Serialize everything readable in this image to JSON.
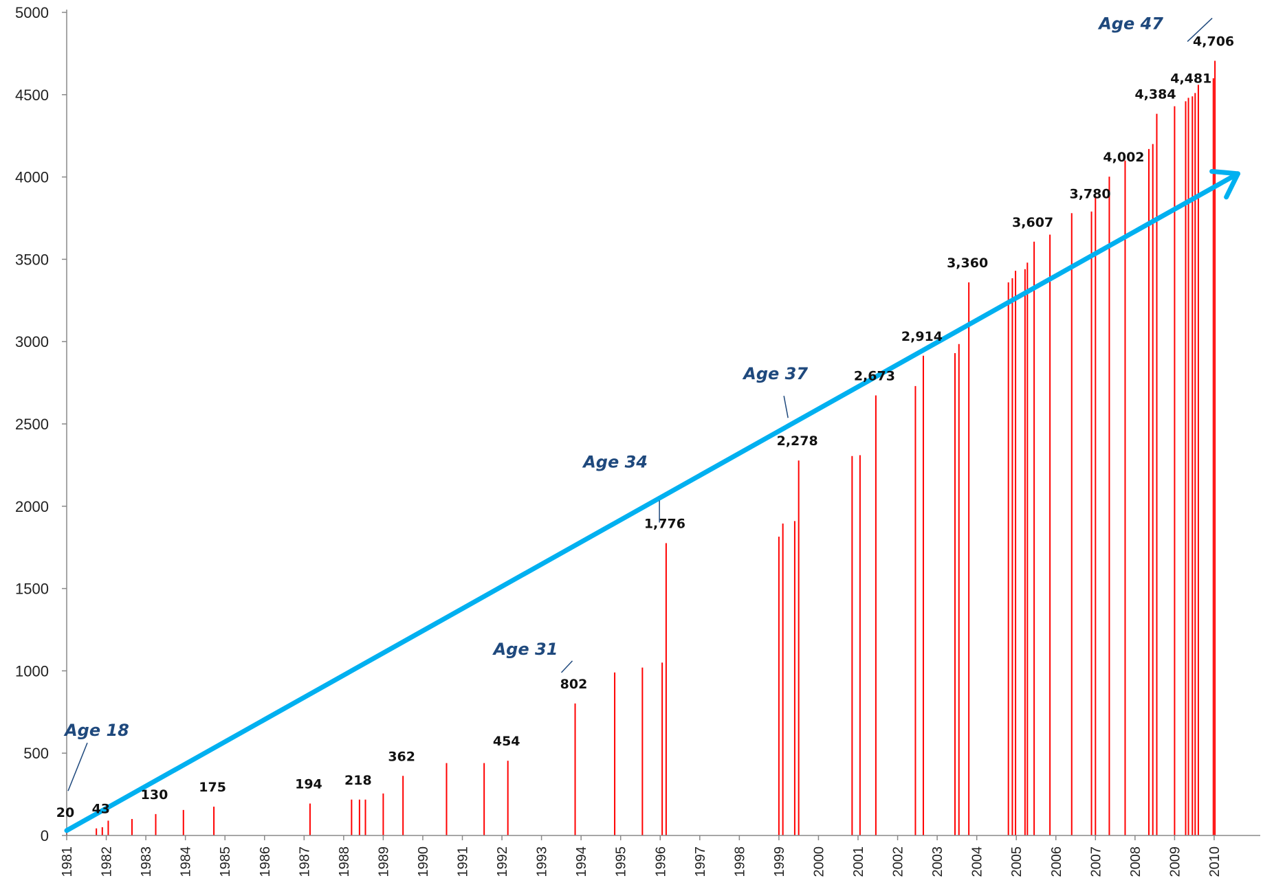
{
  "colors": {
    "bar": "#ff0000",
    "arrow": "#00b0f0",
    "axis": "#888888",
    "annotation": "#1f497d",
    "text": "#111111"
  },
  "chart_data": {
    "type": "bar",
    "title": "",
    "xlabel": "",
    "ylabel": "",
    "ylim": [
      0,
      5000
    ],
    "yticks": [
      "0",
      "500",
      "1000",
      "1500",
      "2000",
      "2500",
      "3000",
      "3500",
      "4000",
      "4500",
      "5000"
    ],
    "xlim": [
      1981,
      2010.5
    ],
    "xticks": [
      "1981",
      "1982",
      "1983",
      "1984",
      "1985",
      "1986",
      "1987",
      "1988",
      "1989",
      "1990",
      "1991",
      "1992",
      "1993",
      "1994",
      "1995",
      "1996",
      "1997",
      "1998",
      "1999",
      "2000",
      "2001",
      "2002",
      "2003",
      "2004",
      "2005",
      "2006",
      "2007",
      "2008",
      "2009",
      "2010"
    ],
    "grid": false,
    "legend": "none",
    "series": [
      {
        "x": [
          1981.0,
          1981.75,
          1981.9,
          1982.05,
          1982.65,
          1983.25,
          1983.95,
          1984.72,
          1987.15,
          1988.2,
          1988.4,
          1988.55,
          1989.0,
          1989.5,
          1990.6,
          1991.55,
          1992.15,
          1993.85,
          1994.85,
          1995.55,
          1996.05,
          1996.15,
          1999.0,
          1999.1,
          1999.4,
          1999.5,
          2000.85,
          2001.05,
          2001.45,
          2002.45,
          2002.65,
          2003.45,
          2003.55,
          2003.8,
          2004.8,
          2004.9,
          2004.98,
          2005.22,
          2005.28,
          2005.45,
          2005.85,
          2006.4,
          2006.9,
          2007.0,
          2007.35,
          2007.75,
          2008.35,
          2008.45,
          2008.55,
          2009.0,
          2009.28,
          2009.35,
          2009.45,
          2009.52,
          2009.6,
          2009.98,
          2010.02
        ],
        "values": [
          20,
          43,
          50,
          90,
          100,
          130,
          155,
          175,
          194,
          218,
          218,
          218,
          255,
          362,
          440,
          440,
          454,
          802,
          990,
          1020,
          1050,
          1776,
          1815,
          1895,
          1910,
          2278,
          2305,
          2310,
          2673,
          2730,
          2914,
          2930,
          2985,
          3360,
          3360,
          3385,
          3430,
          3440,
          3480,
          3607,
          3650,
          3780,
          3790,
          3885,
          4002,
          4100,
          4170,
          4200,
          4384,
          4430,
          4460,
          4481,
          4490,
          4510,
          4560,
          4600,
          4706
        ]
      }
    ],
    "data_labels": [
      {
        "x": 1981.0,
        "y": 20,
        "text": "20"
      },
      {
        "x": 1981.9,
        "y": 43,
        "text": "43"
      },
      {
        "x": 1983.25,
        "y": 130,
        "text": "130"
      },
      {
        "x": 1984.72,
        "y": 175,
        "text": "175"
      },
      {
        "x": 1987.15,
        "y": 194,
        "text": "194"
      },
      {
        "x": 1988.4,
        "y": 218,
        "text": "218"
      },
      {
        "x": 1989.5,
        "y": 362,
        "text": "362"
      },
      {
        "x": 1992.15,
        "y": 454,
        "text": "454"
      },
      {
        "x": 1993.85,
        "y": 802,
        "text": "802"
      },
      {
        "x": 1996.15,
        "y": 1776,
        "text": "1,776"
      },
      {
        "x": 1999.5,
        "y": 2278,
        "text": "2,278"
      },
      {
        "x": 2001.45,
        "y": 2673,
        "text": "2,673"
      },
      {
        "x": 2002.65,
        "y": 2914,
        "text": "2,914"
      },
      {
        "x": 2003.8,
        "y": 3360,
        "text": "3,360"
      },
      {
        "x": 2005.45,
        "y": 3607,
        "text": "3,607"
      },
      {
        "x": 2006.9,
        "y": 3780,
        "text": "3,780"
      },
      {
        "x": 2007.75,
        "y": 4002,
        "text": "4,002"
      },
      {
        "x": 2008.55,
        "y": 4384,
        "text": "4,384"
      },
      {
        "x": 2009.45,
        "y": 4481,
        "text": "4,481"
      },
      {
        "x": 2010.02,
        "y": 4706,
        "text": "4,706"
      }
    ],
    "annotations": [
      {
        "text": "Age 18",
        "x": 1981.0,
        "y": 20
      },
      {
        "text": "Age 31",
        "x": 1993.85,
        "y": 802
      },
      {
        "text": "Age 34",
        "x": 1996.05,
        "y": 1776
      },
      {
        "text": "Age 37",
        "x": 1999.3,
        "y": 2278
      },
      {
        "text": "Age 47",
        "x": 2010.02,
        "y": 4706
      }
    ],
    "trend_arrow": {
      "from": [
        1981.0,
        30
      ],
      "to": [
        2010.6,
        4020
      ]
    }
  }
}
